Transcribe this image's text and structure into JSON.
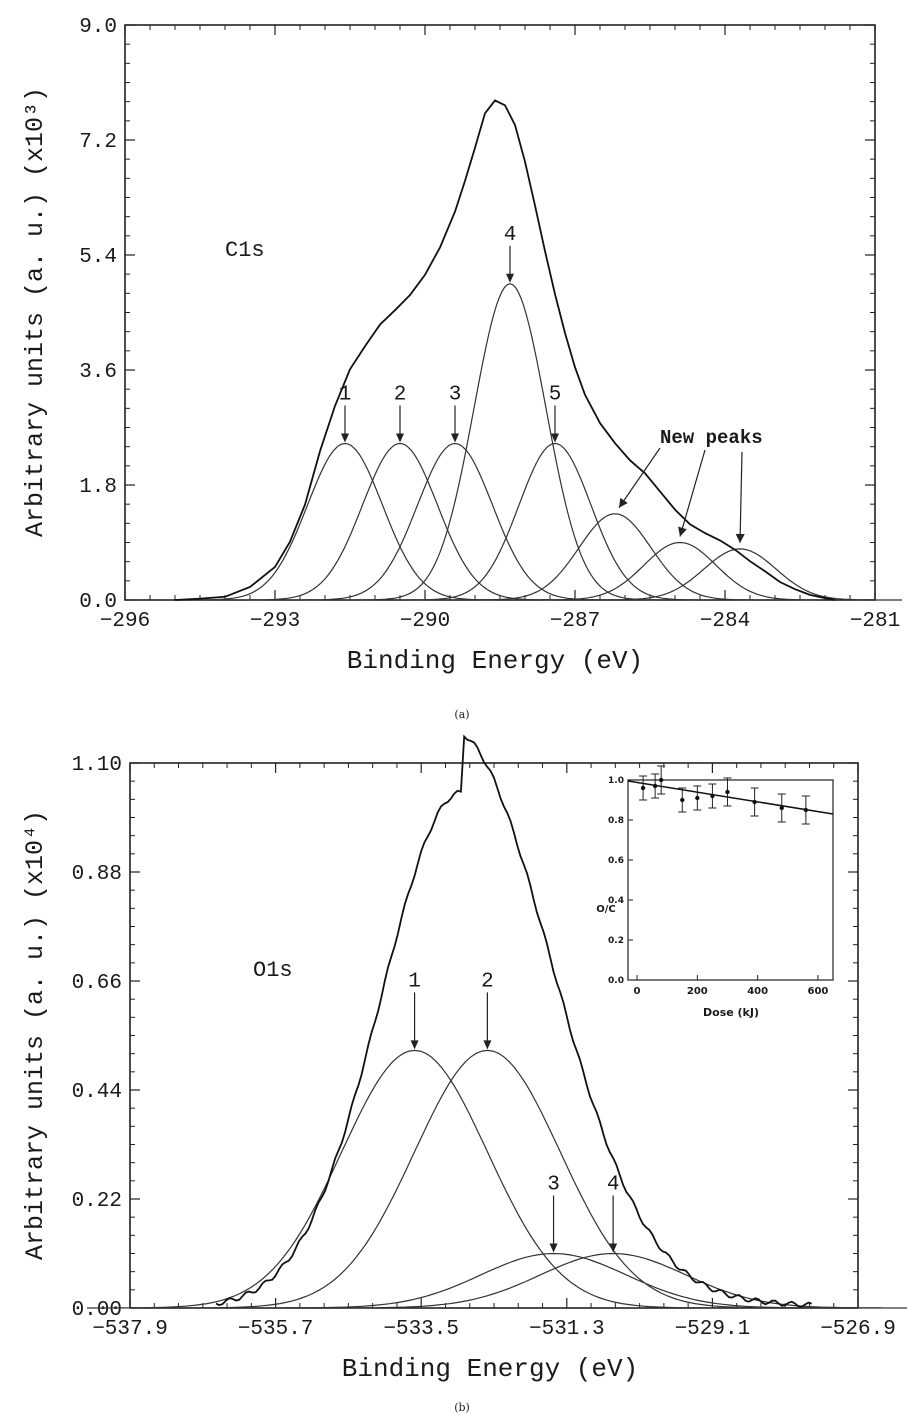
{
  "chart_data": [
    {
      "panel": "a",
      "type": "line",
      "panel_label": "(a)",
      "xlabel": "Binding Energy (eV)",
      "ylabel": "Arbitrary units (a. u.) (x10³)",
      "xlim": [
        -296,
        -281
      ],
      "ylim": [
        0,
        9.0
      ],
      "xticks": [
        -296,
        -293,
        -290,
        -287,
        -284,
        -281
      ],
      "yticks": [
        0.0,
        1.8,
        3.6,
        5.4,
        7.2,
        9.0
      ],
      "ytick_labels": [
        "0.0",
        "1.8",
        "3.6",
        "5.4",
        "7.2",
        "9.0"
      ],
      "annotations": {
        "region": "C1s",
        "new_peaks": "New peaks"
      },
      "envelope": {
        "x": [
          -295.0,
          -294.5,
          -294.0,
          -293.5,
          -293.0,
          -292.7,
          -292.4,
          -292.1,
          -291.8,
          -291.5,
          -291.2,
          -290.9,
          -290.6,
          -290.3,
          -290.0,
          -289.7,
          -289.4,
          -289.2,
          -289.0,
          -288.8,
          -288.6,
          -288.4,
          -288.2,
          -288.0,
          -287.8,
          -287.6,
          -287.4,
          -287.2,
          -287.0,
          -286.8,
          -286.5,
          -286.2,
          -285.9,
          -285.6,
          -285.3,
          -285.0,
          -284.7,
          -284.4,
          -284.1,
          -283.8,
          -283.5,
          -283.2,
          -282.9,
          -282.6,
          -282.3,
          -282.0,
          -281.8
        ],
        "y": [
          0.0,
          0.02,
          0.05,
          0.2,
          0.55,
          0.95,
          1.5,
          2.3,
          3.0,
          3.6,
          4.0,
          4.35,
          4.55,
          4.75,
          5.05,
          5.5,
          6.1,
          6.6,
          7.1,
          7.6,
          7.78,
          7.72,
          7.45,
          6.9,
          6.2,
          5.45,
          4.75,
          4.15,
          3.65,
          3.25,
          2.8,
          2.45,
          2.15,
          1.95,
          1.7,
          1.45,
          1.22,
          1.05,
          0.9,
          0.75,
          0.6,
          0.48,
          0.32,
          0.18,
          0.08,
          0.03,
          0.0
        ]
      },
      "components": [
        {
          "label": "1",
          "center": -291.6,
          "height": 2.45,
          "sigma": 0.75,
          "arrow": true
        },
        {
          "label": "2",
          "center": -290.5,
          "height": 2.45,
          "sigma": 0.75,
          "arrow": true
        },
        {
          "label": "3",
          "center": -289.4,
          "height": 2.45,
          "sigma": 0.75,
          "arrow": true
        },
        {
          "label": "4",
          "center": -288.3,
          "height": 4.95,
          "sigma": 0.72,
          "arrow": true
        },
        {
          "label": "5",
          "center": -287.4,
          "height": 2.45,
          "sigma": 0.72,
          "arrow": true
        },
        {
          "label": "",
          "center": -286.2,
          "height": 1.35,
          "sigma": 0.72,
          "arrow": false
        },
        {
          "label": "",
          "center": -284.9,
          "height": 0.9,
          "sigma": 0.72,
          "arrow": false
        },
        {
          "label": "",
          "center": -283.7,
          "height": 0.8,
          "sigma": 0.72,
          "arrow": false
        }
      ]
    },
    {
      "panel": "b",
      "type": "line",
      "panel_label": "(b)",
      "xlabel": "Binding Energy (eV)",
      "ylabel": "Arbitrary units (a. u.) (x10⁴)",
      "xlim": [
        -537.9,
        -526.9
      ],
      "ylim": [
        0,
        1.1
      ],
      "xticks": [
        -537.9,
        -535.7,
        -533.5,
        -531.3,
        -529.1,
        -526.9
      ],
      "yticks": [
        0.0,
        0.22,
        0.44,
        0.66,
        0.88,
        1.1
      ],
      "ytick_labels": [
        "0.00",
        "0.22",
        "0.44",
        "0.66",
        "0.88",
        "1.10"
      ],
      "annotations": {
        "region": "O1s"
      },
      "envelope_peak": {
        "center": -532.9,
        "height": 1.04,
        "sigma_left": 1.2,
        "sigma_right": 1.4
      },
      "components": [
        {
          "label": "1",
          "center": -533.6,
          "height": 0.52,
          "sigma": 1.1
        },
        {
          "label": "2",
          "center": -532.5,
          "height": 0.52,
          "sigma": 1.1
        },
        {
          "label": "3",
          "center": -531.5,
          "height": 0.11,
          "sigma": 1.1
        },
        {
          "label": "4",
          "center": -530.6,
          "height": 0.11,
          "sigma": 1.1
        }
      ],
      "inset": {
        "type": "scatter",
        "xlabel": "Dose (kJ)",
        "ylabel": "O/C",
        "xlim": [
          -30,
          650
        ],
        "ylim": [
          0.0,
          1.0
        ],
        "xticks": [
          0,
          200,
          400,
          600
        ],
        "yticks": [
          0.0,
          0.2,
          0.4,
          0.6,
          0.8,
          1.0
        ],
        "ytick_labels": [
          "0.0",
          "0.2",
          "0.4",
          "0.6",
          "0.8",
          "1.0"
        ],
        "points": [
          {
            "x": 20,
            "y": 0.96,
            "err": 0.06
          },
          {
            "x": 60,
            "y": 0.97,
            "err": 0.06
          },
          {
            "x": 80,
            "y": 1.0,
            "err": 0.07
          },
          {
            "x": 150,
            "y": 0.9,
            "err": 0.06
          },
          {
            "x": 200,
            "y": 0.91,
            "err": 0.06
          },
          {
            "x": 250,
            "y": 0.92,
            "err": 0.06
          },
          {
            "x": 300,
            "y": 0.94,
            "err": 0.07
          },
          {
            "x": 390,
            "y": 0.89,
            "err": 0.07
          },
          {
            "x": 480,
            "y": 0.86,
            "err": 0.07
          },
          {
            "x": 560,
            "y": 0.85,
            "err": 0.07
          }
        ],
        "fit_line": {
          "x": [
            -30,
            650
          ],
          "y": [
            0.995,
            0.83
          ]
        }
      }
    }
  ]
}
